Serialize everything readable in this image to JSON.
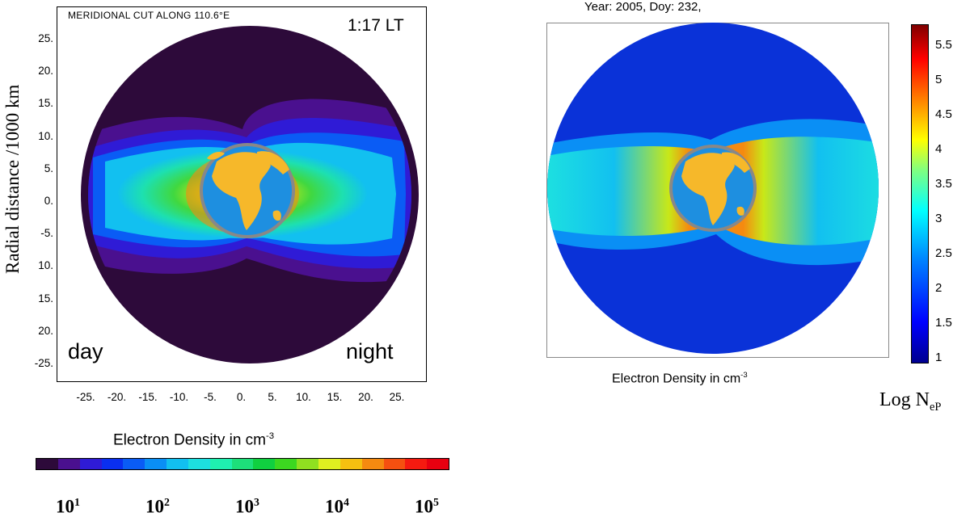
{
  "left_panel": {
    "title": "MERIDIONAL CUT ALONG 110.6°E",
    "time": "1:17 LT",
    "day_label": "day",
    "night_label": "night",
    "ylabel": "Radial distance /1000 km",
    "yticks": [
      "25.",
      "20.",
      "15.",
      "10.",
      "5.",
      "0.",
      "-5.",
      "10.",
      "15.",
      "20.",
      "-25."
    ],
    "xticks": [
      "-25.",
      "-20.",
      "-15.",
      "-10.",
      "-5.",
      "0.",
      "5.",
      "10.",
      "15.",
      "20.",
      "25."
    ],
    "colorbar_title": "Electron Density in cm",
    "colorbar_title_exp": "-3",
    "colorbar_ticks": [
      {
        "base": "10",
        "exp": "1"
      },
      {
        "base": "10",
        "exp": "2"
      },
      {
        "base": "10",
        "exp": "3"
      },
      {
        "base": "10",
        "exp": "4"
      },
      {
        "base": "10",
        "exp": "5"
      }
    ],
    "colorbar_colors": [
      "#2d0a3a",
      "#4a108f",
      "#2f1bd6",
      "#0a2ff0",
      "#0a5cf5",
      "#0a8ff5",
      "#12c0f0",
      "#1de0e0",
      "#1ff0b0",
      "#1de07a",
      "#10d040",
      "#3cd820",
      "#90e020",
      "#e0f020",
      "#f5c010",
      "#f58a10",
      "#f55010",
      "#f51a10",
      "#e80010"
    ]
  },
  "right_panel": {
    "title": "Year: 2005, Doy: 232,",
    "xlabel": "Electron Density in cm",
    "xlabel_exp": "-3",
    "colorbar_label": "Log N",
    "colorbar_label_sub": "eP",
    "colorbar_ticks": [
      "5.5",
      "5",
      "4.5",
      "4",
      "3.5",
      "3",
      "2.5",
      "2",
      "1.5",
      "1"
    ]
  },
  "chart_data": [
    {
      "type": "heatmap",
      "title": "MERIDIONAL CUT ALONG 110.6°E",
      "ylabel": "Radial distance /1000 km",
      "xlabel": "",
      "xlim": [
        -25,
        25
      ],
      "ylim": [
        -25,
        25
      ],
      "annotations": [
        "1:17 LT",
        "day",
        "night"
      ],
      "color_scale": "log10 electron density, 10^1 to 10^5 cm^-3",
      "colorbar_range": [
        1,
        5
      ]
    },
    {
      "type": "heatmap",
      "title": "Year: 2005, Doy: 232,",
      "xlabel": "Electron Density in cm^-3",
      "colorbar_label": "Log NeP",
      "colorbar_range": [
        1,
        5.8
      ],
      "colorbar_ticks": [
        1,
        1.5,
        2,
        2.5,
        3,
        3.5,
        4,
        4.5,
        5,
        5.5
      ]
    }
  ]
}
